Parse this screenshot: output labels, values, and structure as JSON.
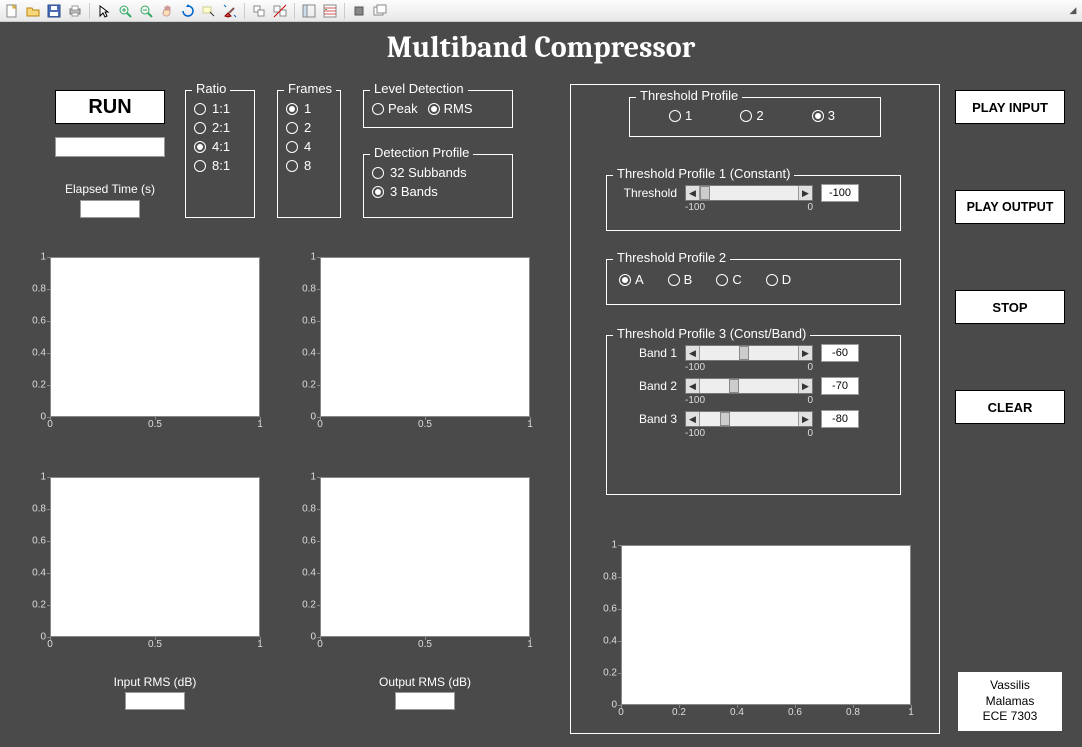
{
  "colors": {
    "canvas": "#4a4a4a",
    "white": "#ffffff",
    "tick": "#dddddd"
  },
  "title": "Multiband Compressor",
  "run_button": "RUN",
  "elapsed_label": "Elapsed Time (s)",
  "elapsed_value": "",
  "ratio": {
    "legend": "Ratio",
    "options": [
      "1:1",
      "2:1",
      "4:1",
      "8:1"
    ],
    "selected": "4:1"
  },
  "frames": {
    "legend": "Frames",
    "options": [
      "1",
      "2",
      "4",
      "8"
    ],
    "selected": "1"
  },
  "level_detection": {
    "legend": "Level Detection",
    "options": [
      "Peak",
      "RMS"
    ],
    "selected": "RMS"
  },
  "detection_profile": {
    "legend": "Detection Profile",
    "options": [
      "32 Subbands",
      "3 Bands"
    ],
    "selected": "3 Bands"
  },
  "threshold_profile_sel": {
    "legend": "Threshold Profile",
    "options": [
      "1",
      "2",
      "3"
    ],
    "selected": "3"
  },
  "tp1": {
    "legend": "Threshold Profile 1 (Constant)",
    "label": "Threshold",
    "min": "-100",
    "max": "0",
    "value": "-100",
    "thumb_pos": 0
  },
  "tp2": {
    "legend": "Threshold Profile 2",
    "options": [
      "A",
      "B",
      "C",
      "D"
    ],
    "selected": "A"
  },
  "tp3": {
    "legend": "Threshold Profile 3 (Const/Band)",
    "bands": [
      {
        "label": "Band 1",
        "min": "-100",
        "max": "0",
        "value": "-60",
        "thumb_pos": 40
      },
      {
        "label": "Band 2",
        "min": "-100",
        "max": "0",
        "value": "-70",
        "thumb_pos": 30
      },
      {
        "label": "Band 3",
        "min": "-100",
        "max": "0",
        "value": "-80",
        "thumb_pos": 20
      }
    ]
  },
  "buttons": {
    "play_input": "PLAY INPUT",
    "play_output": "PLAY OUTPUT",
    "stop": "STOP",
    "clear": "CLEAR"
  },
  "chart": {
    "yticks": [
      0,
      0.2,
      0.4,
      0.6,
      0.8,
      1
    ],
    "xticks": [
      0,
      0.5,
      1
    ],
    "xticks_wide": [
      0,
      0.2,
      0.4,
      0.6,
      0.8,
      1
    ]
  },
  "rms_labels": {
    "input": "Input RMS (dB)",
    "output": "Output RMS (dB)"
  },
  "author": {
    "line1": "Vassilis",
    "line2": "Malamas",
    "line3": "ECE 7303"
  },
  "toolbar_icons": [
    "new-file",
    "open",
    "save",
    "print",
    "_sep",
    "pointer",
    "zoom-in",
    "zoom-out",
    "pan",
    "rotate",
    "data-cursor",
    "brush",
    "_sep",
    "link",
    "unlink",
    "_sep",
    "dock",
    "layout",
    "_sep",
    "stop-rec",
    "window-stack"
  ]
}
